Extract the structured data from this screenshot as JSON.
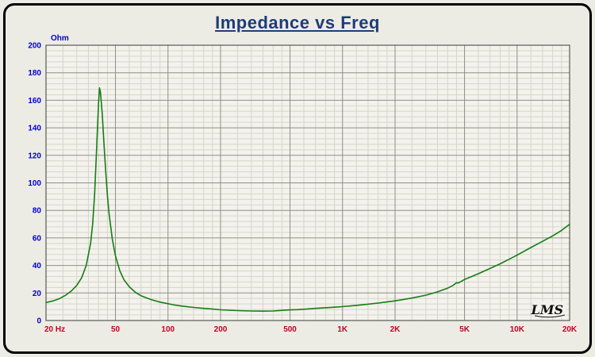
{
  "frame": {
    "background": "#edece4",
    "border_color": "#000000"
  },
  "chart_data": {
    "type": "line",
    "title": "Impedance vs Freq",
    "title_color": "#1d3c78",
    "ylabel": "Ohm",
    "xlabel": "",
    "xscale": "log",
    "xlim": [
      20,
      20000
    ],
    "ylim": [
      0,
      200
    ],
    "y_major_step": 20,
    "y_minor_step": 4,
    "x_ticks": {
      "values": [
        20,
        50,
        100,
        200,
        500,
        1000,
        2000,
        5000,
        10000,
        20000
      ],
      "labels": [
        "20 Hz",
        "50",
        "100",
        "200",
        "500",
        "1K",
        "2K",
        "5K",
        "10K",
        "20K"
      ]
    },
    "x_minor_mantissas": [
      1.2,
      1.4,
      1.6,
      1.8,
      2.5,
      3,
      3.5,
      4,
      4.5,
      6,
      7,
      8,
      9
    ],
    "grid": {
      "show": true,
      "minor_color": "#d7d5cb",
      "major_color": "#8f8f88",
      "border_color": "#3a3a3a",
      "plot_background": "#f3f2ec"
    },
    "axis_label_colors": {
      "y": "#0000cd",
      "x": "#c40023"
    },
    "series": [
      {
        "name": "Impedance",
        "color": "#157d15",
        "x": [
          20,
          22,
          24,
          26,
          28,
          30,
          32,
          34,
          36,
          37,
          38,
          39,
          40,
          40.5,
          41,
          42,
          43,
          44,
          45,
          46,
          48,
          50,
          53,
          56,
          60,
          65,
          70,
          75,
          80,
          90,
          100,
          110,
          120,
          140,
          160,
          180,
          200,
          250,
          300,
          350,
          400,
          450,
          500,
          550,
          600,
          700,
          800,
          900,
          1000,
          1200,
          1400,
          1600,
          1800,
          2000,
          2500,
          3000,
          3500,
          4000,
          4300,
          4500,
          4600,
          4800,
          5000,
          5500,
          6000,
          7000,
          8000,
          9000,
          10000,
          12000,
          14000,
          16000,
          18000,
          20000
        ],
        "y": [
          13,
          14.3,
          16,
          18.5,
          21.5,
          25.5,
          31,
          40,
          56,
          70,
          92,
          125,
          158,
          169,
          166,
          150,
          128,
          108,
          90,
          77,
          59,
          47,
          36,
          29.5,
          24.5,
          20.5,
          18,
          16.5,
          15.2,
          13.4,
          12.2,
          11.2,
          10.5,
          9.5,
          8.8,
          8.3,
          7.8,
          7.2,
          6.9,
          6.8,
          6.9,
          7.4,
          7.7,
          7.9,
          8.2,
          8.8,
          9.3,
          9.7,
          10.1,
          11,
          11.9,
          12.7,
          13.5,
          14.3,
          16.3,
          18.4,
          20.8,
          23.5,
          25.5,
          27.5,
          27.2,
          28.5,
          29.8,
          32,
          34,
          37.8,
          41.2,
          44.5,
          47.5,
          53,
          57.5,
          61.5,
          65.5,
          70
        ]
      }
    ],
    "logo": "LMS"
  }
}
